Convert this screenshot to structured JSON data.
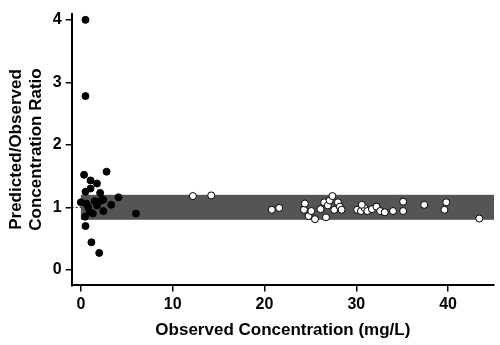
{
  "chart_data": {
    "type": "scatter",
    "x_label": "Observed Concentration (mg/L)",
    "y_label": [
      "Predicted/Observed",
      "Concentration Ratio"
    ],
    "xlim": [
      -1,
      45
    ],
    "xticks": [
      0,
      10,
      20,
      30,
      40
    ],
    "ylim": [
      -0.25,
      4.1
    ],
    "yticks": [
      0,
      1,
      2,
      3,
      4
    ],
    "grid": false,
    "reference_line": {
      "y": 1,
      "line_style": "dotted",
      "color": "#000000"
    },
    "reference_band": {
      "x": [
        0,
        45
      ],
      "y": [
        0.8,
        1.2
      ],
      "color": "#555555"
    },
    "series": [
      {
        "color": "#000000",
        "marker": "filled_circle",
        "x": [
          0.5,
          0.5,
          0.35,
          1.05,
          2.8,
          1.75,
          1.05,
          0.5,
          2.1,
          1.5,
          0.6,
          1.75,
          2.45,
          4.1,
          3.3,
          0.95,
          0.45,
          1.3,
          2.45,
          2.1,
          6.0,
          0.5,
          1.15,
          2.0,
          0,
          0.8
        ],
        "values": [
          4.0,
          2.78,
          1.52,
          1.43,
          1.57,
          1.38,
          1.3,
          1.25,
          1.23,
          1.1,
          1.06,
          1.03,
          1.12,
          1.16,
          1.04,
          0.93,
          0.85,
          0.9,
          0.94,
          1.1,
          0.9,
          0.7,
          0.44,
          0.27,
          1.08,
          1.0
        ]
      },
      {
        "color": "#000000",
        "marker": "open_circle",
        "x": [
          12.2,
          14.2,
          20.8,
          21.6,
          24.3,
          24.4,
          24.8,
          25.5,
          25.1,
          26.1,
          26.5,
          26.9,
          27.1,
          27.4,
          26.7,
          27.6,
          28.0,
          28.2,
          28.4,
          30.1,
          30.5,
          30.9,
          31.2,
          31.7,
          32.2,
          32.6,
          33.1,
          34.0,
          35.1,
          35.1,
          37.4,
          39.6,
          39.8,
          43.4,
          30.6
        ],
        "values": [
          1.18,
          1.19,
          0.96,
          0.99,
          0.96,
          1.06,
          0.86,
          0.81,
          0.94,
          0.97,
          1.08,
          1.03,
          1.11,
          1.18,
          0.84,
          0.96,
          1.08,
          1.01,
          0.96,
          0.96,
          0.94,
          0.99,
          0.94,
          0.97,
          1.01,
          0.94,
          0.92,
          0.94,
          1.09,
          0.94,
          1.04,
          0.96,
          1.08,
          0.82,
          1.04
        ]
      }
    ]
  }
}
